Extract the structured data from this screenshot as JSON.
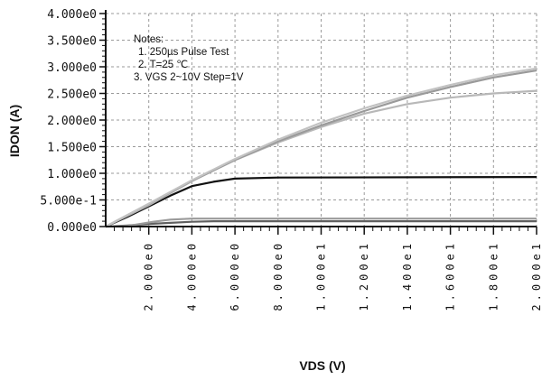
{
  "chart_data": {
    "type": "line",
    "xlabel": "VDS (V)",
    "ylabel": "IDON (A)",
    "xlim": [
      0,
      20
    ],
    "ylim": [
      0,
      4
    ],
    "grid": true,
    "y_ticks": [
      {
        "v": 0.0,
        "label": "0.000e0"
      },
      {
        "v": 0.5,
        "label": "5.000e-1"
      },
      {
        "v": 1.0,
        "label": "1.000e0"
      },
      {
        "v": 1.5,
        "label": "1.500e0"
      },
      {
        "v": 2.0,
        "label": "2.000e0"
      },
      {
        "v": 2.5,
        "label": "2.500e0"
      },
      {
        "v": 3.0,
        "label": "3.000e0"
      },
      {
        "v": 3.5,
        "label": "3.500e0"
      },
      {
        "v": 4.0,
        "label": "4.000e0"
      }
    ],
    "x_ticks": [
      {
        "v": 2,
        "label": "2.000e0"
      },
      {
        "v": 4,
        "label": "4.000e0"
      },
      {
        "v": 6,
        "label": "6.000e0"
      },
      {
        "v": 8,
        "label": "8.000e0"
      },
      {
        "v": 10,
        "label": "1.000e1"
      },
      {
        "v": 12,
        "label": "1.200e1"
      },
      {
        "v": 14,
        "label": "1.400e1"
      },
      {
        "v": 16,
        "label": "1.600e1"
      },
      {
        "v": 18,
        "label": "1.800e1"
      },
      {
        "v": 20,
        "label": "2.000e1"
      }
    ],
    "notes": [
      "Notes:",
      "1. 250µs   Pulse Test",
      "2. T=25 ℃",
      "3. VGS  2~10V   Step=1V"
    ],
    "series": [
      {
        "color": "#606060",
        "points": [
          [
            0,
            0
          ],
          [
            1,
            0.02
          ],
          [
            2,
            0.05
          ],
          [
            3,
            0.07
          ],
          [
            4,
            0.09
          ],
          [
            5,
            0.1
          ],
          [
            6,
            0.1
          ],
          [
            20,
            0.1
          ]
        ]
      },
      {
        "color": "#9a9a9a",
        "points": [
          [
            0,
            0
          ],
          [
            1,
            0.01
          ],
          [
            1.6,
            0.05
          ],
          [
            2.2,
            0.09
          ],
          [
            3,
            0.13
          ],
          [
            4,
            0.15
          ],
          [
            20,
            0.15
          ]
        ]
      },
      {
        "color": "#111111",
        "points": [
          [
            0,
            0
          ],
          [
            1,
            0.18
          ],
          [
            2,
            0.38
          ],
          [
            3,
            0.58
          ],
          [
            4,
            0.76
          ],
          [
            5,
            0.84
          ],
          [
            6,
            0.9
          ],
          [
            8,
            0.92
          ],
          [
            20,
            0.93
          ]
        ]
      },
      {
        "color": "#b8b8b8",
        "points": [
          [
            0,
            0
          ],
          [
            2,
            0.4
          ],
          [
            4,
            0.85
          ],
          [
            6,
            1.25
          ],
          [
            8,
            1.58
          ],
          [
            10,
            1.87
          ],
          [
            12,
            2.12
          ],
          [
            14,
            2.3
          ],
          [
            16,
            2.42
          ],
          [
            18,
            2.5
          ],
          [
            20,
            2.55
          ]
        ]
      },
      {
        "color": "#9a9a9a",
        "points": [
          [
            0,
            0
          ],
          [
            2,
            0.42
          ],
          [
            4,
            0.86
          ],
          [
            6,
            1.25
          ],
          [
            8,
            1.6
          ],
          [
            10,
            1.9
          ],
          [
            12,
            2.17
          ],
          [
            14,
            2.42
          ],
          [
            16,
            2.62
          ],
          [
            18,
            2.8
          ],
          [
            20,
            2.93
          ]
        ]
      },
      {
        "color": "#c2c2c2",
        "points": [
          [
            0,
            0
          ],
          [
            2,
            0.43
          ],
          [
            4,
            0.87
          ],
          [
            6,
            1.27
          ],
          [
            8,
            1.63
          ],
          [
            10,
            1.95
          ],
          [
            12,
            2.22
          ],
          [
            14,
            2.46
          ],
          [
            16,
            2.66
          ],
          [
            18,
            2.84
          ],
          [
            20,
            2.97
          ]
        ]
      }
    ]
  }
}
